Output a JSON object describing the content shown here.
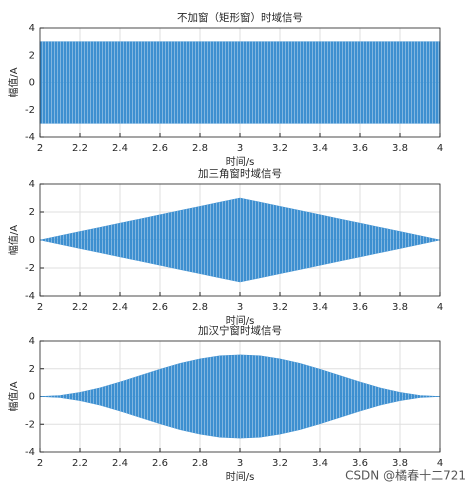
{
  "chart_data": [
    {
      "type": "area",
      "title": "不加窗（矩形窗）时域信号",
      "xlabel": "时间/s",
      "ylabel": "幅值/A",
      "x": [
        2,
        2.1,
        2.2,
        2.3,
        2.4,
        2.5,
        2.6,
        2.7,
        2.8,
        2.9,
        3,
        3.1,
        3.2,
        3.3,
        3.4,
        3.5,
        3.6,
        3.7,
        3.8,
        3.9,
        4
      ],
      "series": [
        {
          "color": "#3d8fd0",
          "values": [
            3,
            3,
            3,
            3,
            3,
            3,
            3,
            3,
            3,
            3,
            3,
            3,
            3,
            3,
            3,
            3,
            3,
            3,
            3,
            3,
            3
          ]
        },
        {
          "color": "#3d8fd0",
          "values": [
            -3,
            -3,
            -3,
            -3,
            -3,
            -3,
            -3,
            -3,
            -3,
            -3,
            -3,
            -3,
            -3,
            -3,
            -3,
            -3,
            -3,
            -3,
            -3,
            -3,
            -3
          ]
        }
      ],
      "xlim": [
        2,
        4
      ],
      "xticks": [
        2,
        2.2,
        2.4,
        2.6,
        2.8,
        3,
        3.2,
        3.4,
        3.6,
        3.8,
        4
      ],
      "ylim": [
        -4,
        4
      ],
      "yticks": [
        -4,
        -2,
        0,
        2,
        4
      ],
      "grid": true
    },
    {
      "type": "area",
      "title": "加三角窗时域信号",
      "xlabel": "时间/s",
      "ylabel": "幅值/A",
      "x": [
        2,
        2.1,
        2.2,
        2.3,
        2.4,
        2.5,
        2.6,
        2.7,
        2.8,
        2.9,
        3,
        3.1,
        3.2,
        3.3,
        3.4,
        3.5,
        3.6,
        3.7,
        3.8,
        3.9,
        4
      ],
      "series": [
        {
          "color": "#3d8fd0",
          "values": [
            0,
            0.3,
            0.6,
            0.9,
            1.2,
            1.5,
            1.8,
            2.1,
            2.4,
            2.7,
            3,
            2.7,
            2.4,
            2.1,
            1.8,
            1.5,
            1.2,
            0.9,
            0.6,
            0.3,
            0
          ]
        },
        {
          "color": "#3d8fd0",
          "values": [
            0,
            -0.3,
            -0.6,
            -0.9,
            -1.2,
            -1.5,
            -1.8,
            -2.1,
            -2.4,
            -2.7,
            -3,
            -2.7,
            -2.4,
            -2.1,
            -1.8,
            -1.5,
            -1.2,
            -0.9,
            -0.6,
            -0.3,
            0
          ]
        }
      ],
      "xlim": [
        2,
        4
      ],
      "xticks": [
        2,
        2.2,
        2.4,
        2.6,
        2.8,
        3,
        3.2,
        3.4,
        3.6,
        3.8,
        4
      ],
      "ylim": [
        -4,
        4
      ],
      "yticks": [
        -4,
        -2,
        0,
        2,
        4
      ],
      "grid": true
    },
    {
      "type": "area",
      "title": "加汉宁窗时域信号",
      "xlabel": "时间/s",
      "ylabel": "幅值/A",
      "x": [
        2,
        2.1,
        2.2,
        2.3,
        2.4,
        2.5,
        2.6,
        2.7,
        2.8,
        2.9,
        3,
        3.1,
        3.2,
        3.3,
        3.4,
        3.5,
        3.6,
        3.7,
        3.8,
        3.9,
        4
      ],
      "series": [
        {
          "color": "#3d8fd0",
          "values": [
            0,
            0.07,
            0.29,
            0.62,
            1.04,
            1.5,
            1.96,
            2.38,
            2.71,
            2.93,
            3,
            2.93,
            2.71,
            2.38,
            1.96,
            1.5,
            1.04,
            0.62,
            0.29,
            0.07,
            0
          ]
        },
        {
          "color": "#3d8fd0",
          "values": [
            0,
            -0.07,
            -0.29,
            -0.62,
            -1.04,
            -1.5,
            -1.96,
            -2.38,
            -2.71,
            -2.93,
            -3,
            -2.93,
            -2.71,
            -2.38,
            -1.96,
            -1.5,
            -1.04,
            -0.62,
            -0.29,
            -0.07,
            0
          ]
        }
      ],
      "xlim": [
        2,
        4
      ],
      "xticks": [
        2,
        2.2,
        2.4,
        2.6,
        2.8,
        3,
        3.2,
        3.4,
        3.6,
        3.8,
        4
      ],
      "ylim": [
        -4,
        4
      ],
      "yticks": [
        -4,
        -2,
        0,
        2,
        4
      ],
      "grid": true
    }
  ],
  "watermark": "CSDN @橘春十二721"
}
